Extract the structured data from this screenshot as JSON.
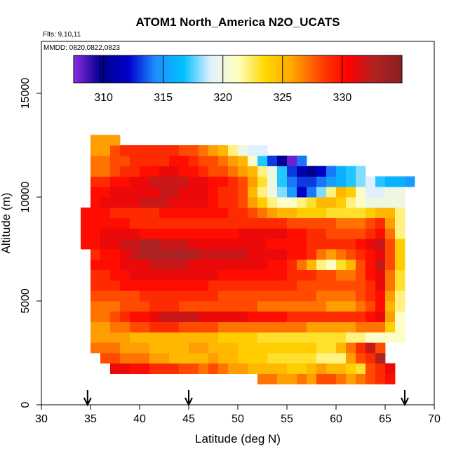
{
  "chart_data": {
    "type": "heatmap",
    "title": "ATOM1 North_America N2O_UCATS",
    "notes": [
      "Flts: 9,10,11",
      "MMDD: 0820,0822,0823"
    ],
    "xlabel": "Latitude (deg N)",
    "ylabel": "Altitude (m)",
    "xlim": [
      30,
      70
    ],
    "ylim": [
      0,
      17500
    ],
    "x_ticks": [
      30,
      35,
      40,
      45,
      50,
      55,
      60,
      65,
      70
    ],
    "y_ticks": [
      0,
      5000,
      10000,
      15000
    ],
    "grid": false,
    "colorbar": {
      "position": "top",
      "range": [
        307.5,
        335
      ],
      "ticks": [
        310,
        315,
        320,
        325,
        330
      ],
      "colors": [
        "#8a2be2",
        "#00008b",
        "#0000cd",
        "#1e90ff",
        "#00bfff",
        "#e0f0ff",
        "#ffffc0",
        "#ffd700",
        "#ffa500",
        "#ff4500",
        "#ff0000",
        "#b22222",
        "#8b2020"
      ]
    },
    "arrows_latitude": [
      34.7,
      45.0,
      67.0
    ],
    "cell_size": {
      "lat_deg": 1.0,
      "alt_m": 500
    },
    "rows": [
      {
        "alt_m": 1000,
        "lat_start": 52,
        "values": [
          327,
          327,
          326,
          326,
          327,
          326,
          328,
          328,
          327,
          326,
          327,
          328,
          329,
          330
        ]
      },
      {
        "alt_m": 1500,
        "lat_start": 37,
        "values": [
          331,
          331,
          330,
          330,
          329,
          329,
          329,
          328,
          328,
          327,
          328,
          327,
          326,
          326,
          325,
          325,
          325,
          325,
          324,
          324,
          325,
          326,
          325,
          325,
          324,
          323,
          328,
          329,
          331
        ]
      },
      {
        "alt_m": 2000,
        "lat_start": 36,
        "values": [
          328,
          328,
          327,
          327,
          327,
          326,
          326,
          325,
          325,
          325,
          325,
          326,
          325,
          325,
          324,
          324,
          324,
          323,
          323,
          323,
          323,
          323,
          322,
          322,
          322,
          326,
          328,
          329,
          333
        ]
      },
      {
        "alt_m": 2500,
        "lat_start": 35,
        "values": [
          327,
          327,
          327,
          326,
          326,
          326,
          325,
          325,
          325,
          325,
          326,
          326,
          325,
          325,
          325,
          324,
          324,
          324,
          324,
          324,
          324,
          324,
          324,
          323,
          323,
          325,
          327,
          329,
          332,
          328
        ]
      },
      {
        "alt_m": 3000,
        "lat_start": 35,
        "values": [
          326,
          326,
          326,
          326,
          325,
          325,
          325,
          325,
          325,
          325,
          325,
          325,
          325,
          324,
          324,
          324,
          324,
          323,
          323,
          323,
          323,
          323,
          323,
          323,
          323,
          323,
          322,
          322,
          321,
          321,
          321,
          321
        ]
      },
      {
        "alt_m": 3500,
        "lat_start": 35,
        "values": [
          326,
          326,
          327,
          327,
          328,
          328,
          329,
          329,
          329,
          328,
          328,
          328,
          328,
          327,
          327,
          327,
          327,
          327,
          327,
          327,
          327,
          327,
          326,
          326,
          326,
          326,
          326,
          327,
          327,
          327,
          324,
          321
        ]
      },
      {
        "alt_m": 4000,
        "lat_start": 35,
        "values": [
          327,
          327,
          328,
          329,
          330,
          330,
          331,
          332,
          332,
          332,
          332,
          331,
          331,
          331,
          331,
          331,
          330,
          330,
          330,
          330,
          329,
          329,
          329,
          329,
          329,
          329,
          329,
          329,
          330,
          331,
          326,
          321
        ]
      },
      {
        "alt_m": 4500,
        "lat_start": 35,
        "values": [
          327,
          327,
          327,
          328,
          328,
          328,
          329,
          329,
          329,
          328,
          328,
          328,
          328,
          328,
          328,
          328,
          328,
          327,
          327,
          327,
          327,
          327,
          327,
          327,
          326,
          326,
          326,
          327,
          328,
          330,
          325,
          322
        ]
      },
      {
        "alt_m": 5000,
        "lat_start": 35,
        "values": [
          328,
          328,
          328,
          328,
          328,
          329,
          329,
          329,
          329,
          329,
          329,
          329,
          329,
          328,
          328,
          328,
          328,
          328,
          328,
          328,
          328,
          328,
          328,
          327,
          327,
          327,
          327,
          328,
          329,
          330,
          326,
          322
        ]
      },
      {
        "alt_m": 5500,
        "lat_start": 35,
        "values": [
          329,
          329,
          329,
          330,
          330,
          330,
          330,
          330,
          330,
          330,
          330,
          330,
          329,
          329,
          329,
          329,
          329,
          329,
          329,
          329,
          329,
          328,
          328,
          328,
          328,
          328,
          328,
          328,
          329,
          331,
          327,
          323
        ]
      },
      {
        "alt_m": 6000,
        "lat_start": 35,
        "values": [
          329,
          329,
          330,
          330,
          331,
          331,
          331,
          331,
          331,
          331,
          331,
          331,
          331,
          330,
          330,
          330,
          330,
          330,
          330,
          330,
          329,
          329,
          329,
          328,
          328,
          327,
          327,
          328,
          330,
          331,
          327,
          323
        ]
      },
      {
        "alt_m": 6500,
        "lat_start": 35,
        "values": [
          330,
          330,
          330,
          331,
          331,
          331,
          332,
          332,
          332,
          332,
          331,
          331,
          331,
          331,
          331,
          331,
          331,
          331,
          330,
          330,
          329,
          327,
          325,
          322,
          321,
          323,
          325,
          328,
          330,
          332,
          328,
          324
        ]
      },
      {
        "alt_m": 7000,
        "lat_start": 35,
        "values": [
          329,
          330,
          330,
          331,
          332,
          333,
          333,
          333,
          333,
          333,
          333,
          332,
          332,
          332,
          332,
          332,
          331,
          331,
          331,
          331,
          330,
          330,
          329,
          327,
          326,
          327,
          328,
          329,
          330,
          331,
          328,
          324
        ]
      },
      {
        "alt_m": 7500,
        "lat_start": 34,
        "values": [
          330,
          330,
          331,
          331,
          332,
          332,
          333,
          333,
          332,
          332,
          332,
          331,
          331,
          331,
          331,
          331,
          331,
          331,
          331,
          330,
          330,
          330,
          330,
          329,
          329,
          329,
          329,
          329,
          330,
          331,
          332,
          328,
          324
        ]
      },
      {
        "alt_m": 8000,
        "lat_start": 34,
        "values": [
          330,
          330,
          331,
          331,
          331,
          331,
          330,
          330,
          330,
          330,
          330,
          330,
          330,
          330,
          330,
          330,
          331,
          331,
          331,
          331,
          331,
          330,
          330,
          329,
          329,
          328,
          328,
          328,
          328,
          329,
          330,
          327,
          322
        ]
      },
      {
        "alt_m": 8500,
        "lat_start": 34,
        "values": [
          330,
          330,
          330,
          330,
          330,
          329,
          329,
          329,
          329,
          329,
          329,
          329,
          329,
          329,
          329,
          329,
          329,
          329,
          329,
          329,
          329,
          328,
          328,
          328,
          328,
          328,
          327,
          327,
          327,
          328,
          329,
          326,
          322
        ]
      },
      {
        "alt_m": 9000,
        "lat_start": 34,
        "values": [
          330,
          330,
          330,
          329,
          329,
          329,
          329,
          329,
          330,
          330,
          330,
          330,
          330,
          330,
          330,
          329,
          329,
          328,
          327,
          326,
          325,
          325,
          324,
          324,
          324,
          323,
          323,
          323,
          323,
          324,
          325,
          325,
          322
        ]
      },
      {
        "alt_m": 9500,
        "lat_start": 35,
        "values": [
          330,
          331,
          331,
          331,
          331,
          332,
          332,
          332,
          331,
          331,
          331,
          331,
          330,
          329,
          329,
          328,
          326,
          324,
          322,
          321,
          321,
          322,
          323,
          325,
          325,
          324,
          322,
          321,
          320,
          320,
          320,
          320
        ]
      },
      {
        "alt_m": 10000,
        "lat_start": 35,
        "values": [
          330,
          330,
          331,
          331,
          331,
          331,
          331,
          332,
          332,
          331,
          331,
          331,
          330,
          329,
          329,
          328,
          325,
          322,
          320,
          318,
          315,
          312,
          314,
          318,
          322,
          325,
          324,
          321,
          319,
          319,
          320,
          320
        ]
      },
      {
        "alt_m": 10500,
        "lat_start": 35,
        "values": [
          329,
          329,
          330,
          330,
          331,
          331,
          332,
          332,
          332,
          332,
          331,
          331,
          330,
          330,
          329,
          328,
          326,
          323,
          320,
          317,
          314,
          313,
          313,
          314,
          315,
          316,
          317,
          318,
          319,
          317,
          316,
          316,
          315
        ]
      },
      {
        "alt_m": 11000,
        "lat_start": 35,
        "values": [
          327,
          327,
          328,
          329,
          329,
          330,
          330,
          331,
          331,
          330,
          330,
          329,
          328,
          328,
          327,
          326,
          325,
          322,
          320,
          317,
          313,
          311,
          310,
          312,
          314,
          316,
          317,
          318
        ]
      },
      {
        "alt_m": 11500,
        "lat_start": 35,
        "values": [
          327,
          327,
          328,
          328,
          329,
          329,
          329,
          329,
          330,
          330,
          329,
          328,
          328,
          327,
          326,
          325,
          321,
          317,
          313,
          310,
          308,
          314
        ]
      },
      {
        "alt_m": 12000,
        "lat_start": 35,
        "values": [
          326,
          326,
          328,
          329,
          329,
          329,
          329,
          329,
          329,
          328,
          328,
          327,
          326,
          325,
          322,
          320,
          319,
          319
        ]
      },
      {
        "alt_m": 12500,
        "lat_start": 35,
        "values": [
          326,
          326,
          326
        ]
      }
    ]
  }
}
